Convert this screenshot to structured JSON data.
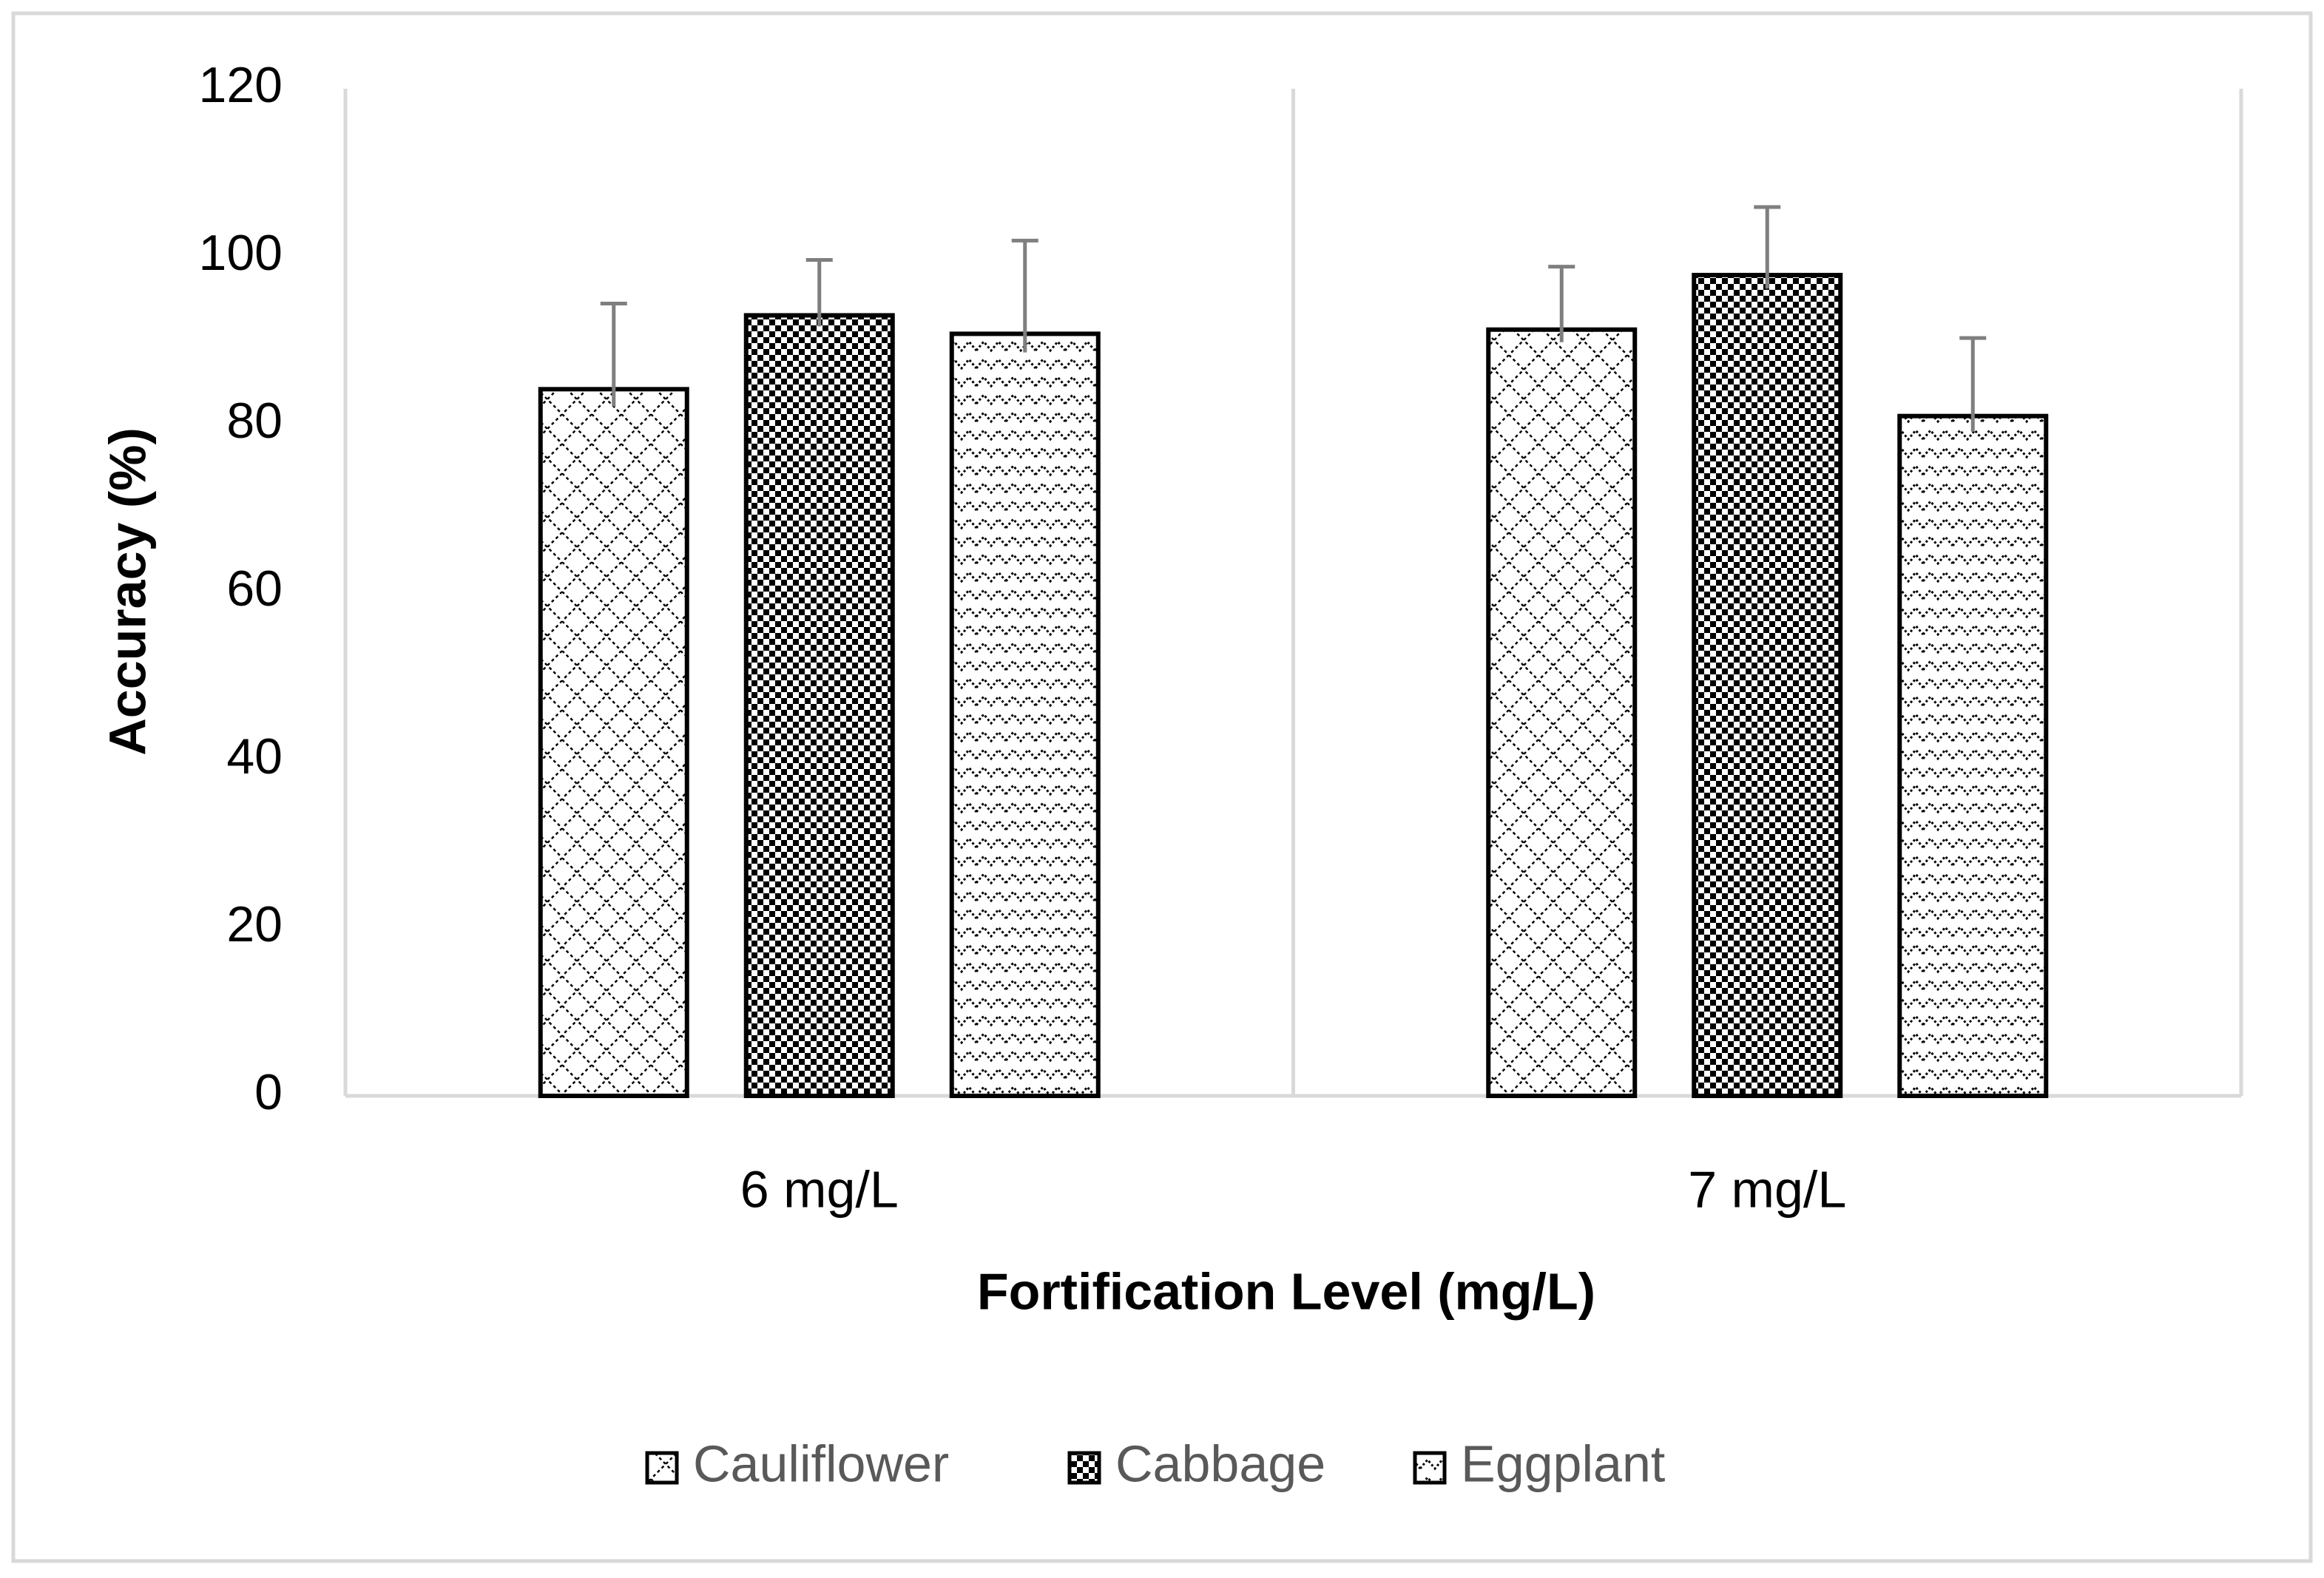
{
  "chart_data": {
    "type": "bar",
    "title": "",
    "xlabel": "Fortification Level (mg/L)",
    "ylabel": "Accuracy (%)",
    "ylim": [
      0,
      120
    ],
    "yticks": [
      0,
      20,
      40,
      60,
      80,
      100,
      120
    ],
    "categories": [
      "6 mg/L",
      "7 mg/L"
    ],
    "series": [
      {
        "name": "Cauliflower",
        "pattern": "diamond-lattice",
        "values": [
          84.2,
          91.3
        ],
        "error": [
          10.2,
          7.5
        ]
      },
      {
        "name": "Cabbage",
        "pattern": "checker",
        "values": [
          93.0,
          97.8
        ],
        "error": [
          6.6,
          8.1
        ]
      },
      {
        "name": "Eggplant",
        "pattern": "zigzag",
        "values": [
          90.8,
          81.0
        ],
        "error": [
          11.1,
          9.3
        ]
      }
    ],
    "grid": false,
    "legend": "bottom",
    "error_bars": true,
    "colors": {
      "axis": "#d9d9d9",
      "bar_stroke": "#000000",
      "error": "#7f7f7f",
      "text": "#000000",
      "legend_text": "#595959"
    }
  }
}
